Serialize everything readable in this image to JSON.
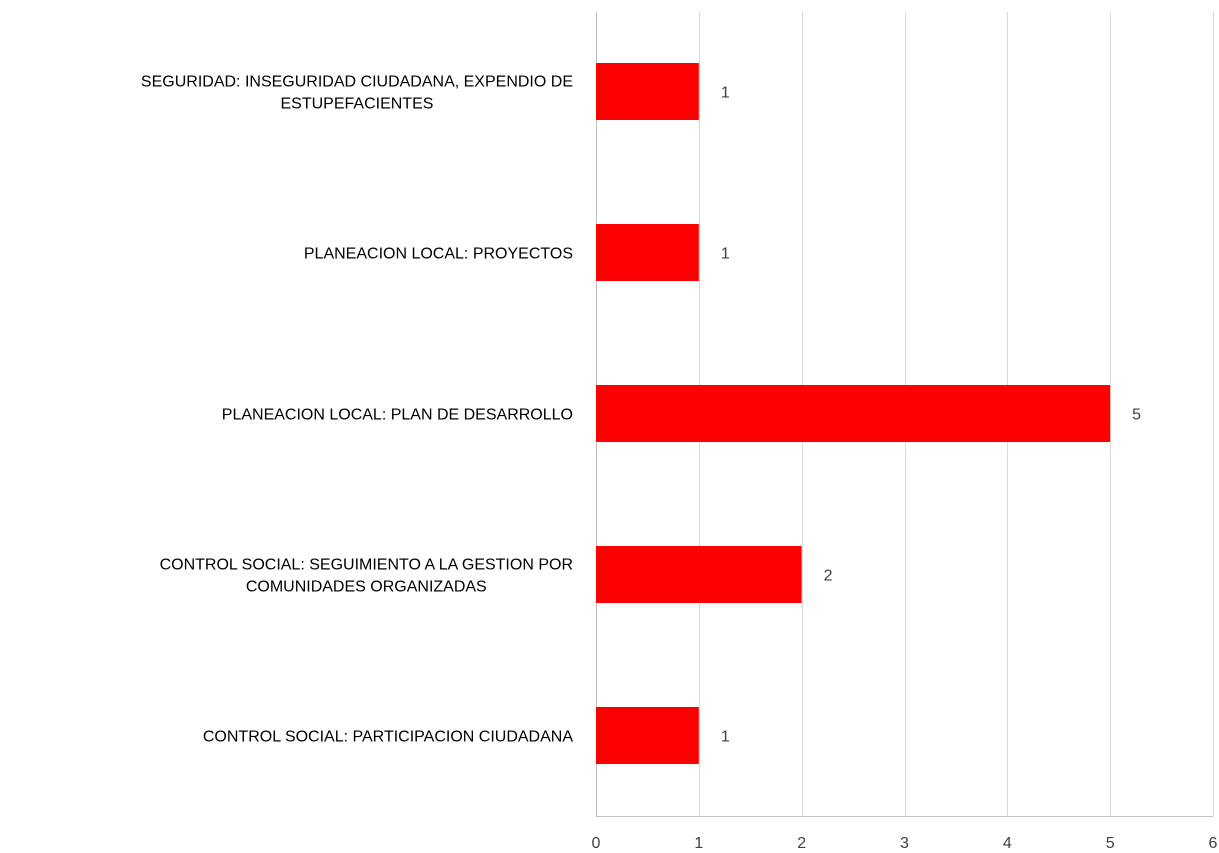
{
  "chart_data": {
    "type": "bar",
    "orientation": "horizontal",
    "categories": [
      [
        "SEGURIDAD: INSEGURIDAD CIUDADANA,  EXPENDIO DE",
        "ESTUPEFACIENTES"
      ],
      [
        "PLANEACION LOCAL: PROYECTOS"
      ],
      [
        "PLANEACION LOCAL: PLAN DE DESARROLLO"
      ],
      [
        "CONTROL SOCIAL: SEGUIMIENTO A LA GESTION POR",
        "COMUNIDADES ORGANIZADAS"
      ],
      [
        "CONTROL SOCIAL: PARTICIPACION CIUDADANA"
      ]
    ],
    "values": [
      1,
      1,
      5,
      2,
      1
    ],
    "xlim": [
      0,
      6
    ],
    "x_ticks": [
      0,
      1,
      2,
      3,
      4,
      5,
      6
    ],
    "grid": true,
    "legend": "none",
    "bar_color": "#ff0000",
    "data_labels": true
  }
}
